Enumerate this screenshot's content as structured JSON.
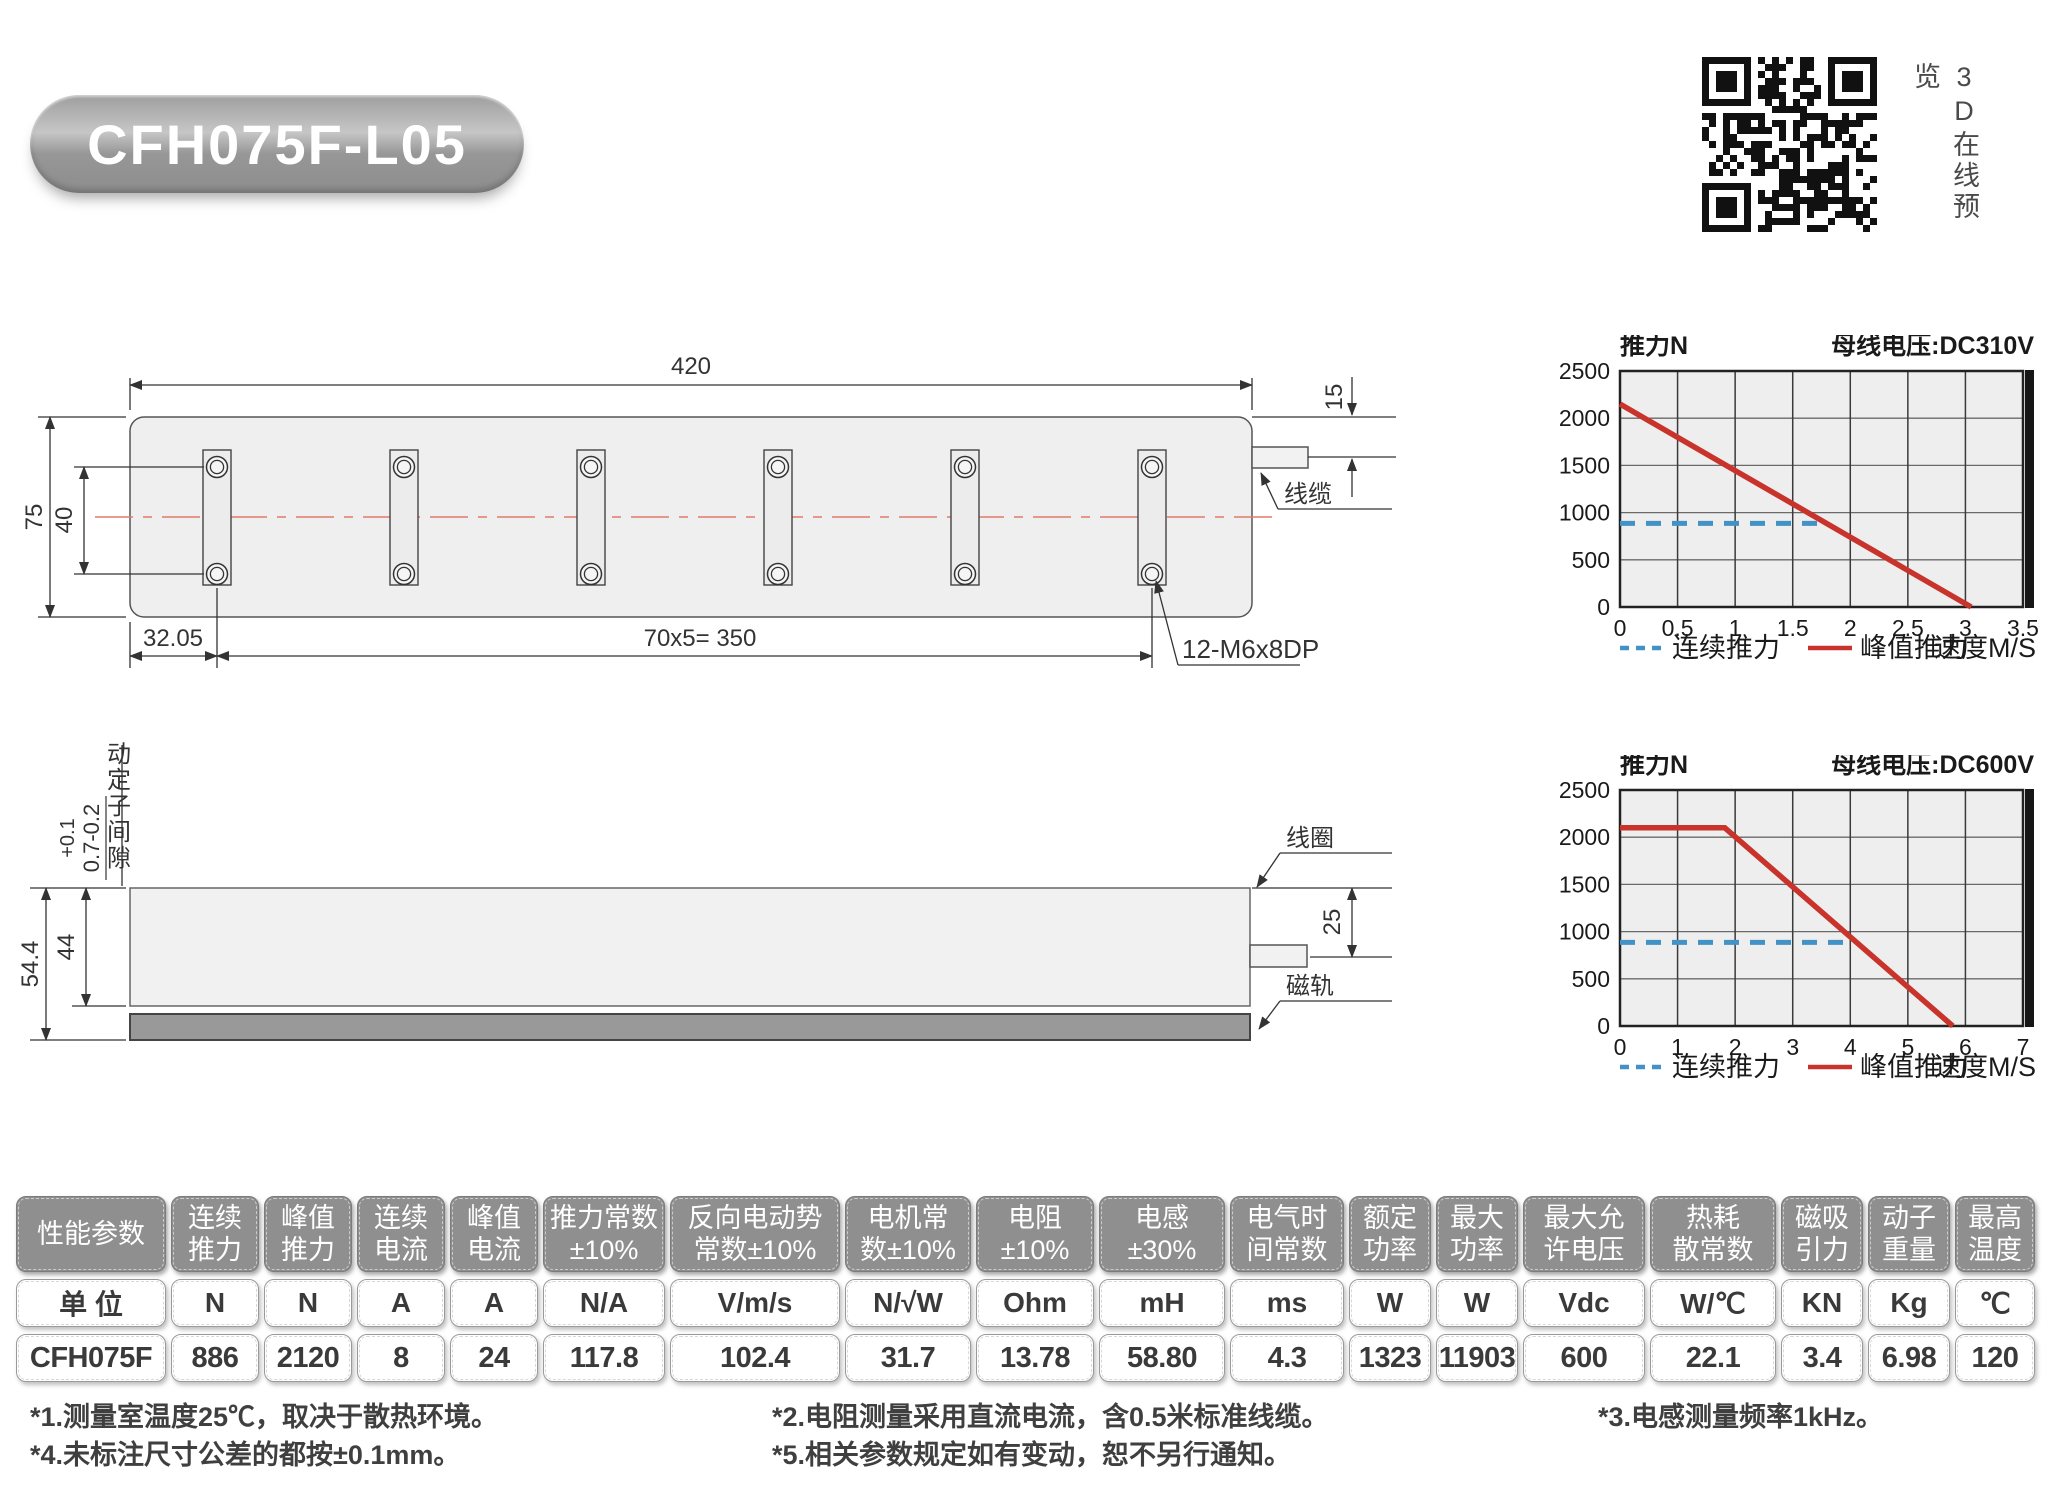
{
  "header": {
    "title": "CFH075F-L05",
    "qr_caption": "3D在线预览"
  },
  "drawing_top": {
    "dim_width": "420",
    "dim_height": "75",
    "dim_hole_pitch_vertical": "40",
    "dim_first_hole": "32.05",
    "dim_hole_pitch_horizontal": "70x5= 350",
    "dim_cable_offset": "15",
    "label_cable": "线缆",
    "label_thread": "12-M6x8DP"
  },
  "drawing_side": {
    "dim_total_height": "54.4",
    "dim_coil_height": "44",
    "tolerance_upper": "+0.1",
    "tolerance_value": "0.7-0.2",
    "label_gap": "动定子间隙",
    "label_coil": "线圈",
    "dim_cable_offset": "25",
    "label_magnet": "磁轨"
  },
  "chart_data": [
    {
      "type": "line",
      "ylabel": "推力N",
      "bus_label": "母线电压:DC310V",
      "xlabel": "速度M/S",
      "xlim": [
        0,
        3.5
      ],
      "ylim": [
        0,
        2500
      ],
      "x_ticks": [
        "0",
        "0.5",
        "1",
        "1.5",
        "2",
        "2.5",
        "3",
        "3.5"
      ],
      "y_ticks": [
        "0",
        "500",
        "1000",
        "1500",
        "2000",
        "2500"
      ],
      "grid": true,
      "legend_position": "bottom",
      "legend": [
        {
          "name": "连续推力",
          "style": "dashed",
          "color": "#4292c6"
        },
        {
          "name": "峰值推力",
          "style": "solid",
          "color": "#c8332b"
        }
      ],
      "series": [
        {
          "name": "峰值推力",
          "style": "solid",
          "color": "#c8332b",
          "points": [
            [
              0,
              2150
            ],
            [
              3.05,
              0
            ]
          ]
        },
        {
          "name": "连续推力",
          "style": "dashed",
          "color": "#4292c6",
          "points": [
            [
              0,
              886
            ],
            [
              1.75,
              886
            ]
          ]
        }
      ]
    },
    {
      "type": "line",
      "ylabel": "推力N",
      "bus_label": "母线电压:DC600V",
      "xlabel": "速度M/S",
      "xlim": [
        0,
        7
      ],
      "ylim": [
        0,
        2500
      ],
      "x_ticks": [
        "0",
        "1",
        "2",
        "3",
        "4",
        "5",
        "6",
        "7"
      ],
      "y_ticks": [
        "0",
        "500",
        "1000",
        "1500",
        "2000",
        "2500"
      ],
      "grid": true,
      "legend_position": "bottom",
      "legend": [
        {
          "name": "连续推力",
          "style": "dashed",
          "color": "#4292c6"
        },
        {
          "name": "峰值推力",
          "style": "solid",
          "color": "#c8332b"
        }
      ],
      "series": [
        {
          "name": "峰值推力",
          "style": "solid",
          "color": "#c8332b",
          "points": [
            [
              0,
              2100
            ],
            [
              1.82,
              2100
            ],
            [
              5.78,
              0
            ]
          ]
        },
        {
          "name": "连续推力",
          "style": "dashed",
          "color": "#4292c6",
          "points": [
            [
              0,
              886
            ],
            [
              4.02,
              886
            ]
          ]
        }
      ]
    }
  ],
  "table": {
    "columns": [
      {
        "header": "性能参数",
        "unit": "单 位",
        "value": "CFH075F"
      },
      {
        "header": "连续\n推力",
        "unit": "N",
        "value": "886"
      },
      {
        "header": "峰值\n推力",
        "unit": "N",
        "value": "2120"
      },
      {
        "header": "连续\n电流",
        "unit": "A",
        "value": "8"
      },
      {
        "header": "峰值\n电流",
        "unit": "A",
        "value": "24"
      },
      {
        "header": "推力常数\n±10%",
        "unit": "N/A",
        "value": "117.8"
      },
      {
        "header": "反向电动势\n常数±10%",
        "unit": "V/m/s",
        "value": "102.4"
      },
      {
        "header": "电机常\n数±10%",
        "unit": "N/√W",
        "value": "31.7"
      },
      {
        "header": "电阻\n±10%",
        "unit": "Ohm",
        "value": "13.78"
      },
      {
        "header": "电感\n±30%",
        "unit": "mH",
        "value": "58.80"
      },
      {
        "header": "电气时\n间常数",
        "unit": "ms",
        "value": "4.3"
      },
      {
        "header": "额定\n功率",
        "unit": "W",
        "value": "1323"
      },
      {
        "header": "最大\n功率",
        "unit": "W",
        "value": "11903"
      },
      {
        "header": "最大允\n许电压",
        "unit": "Vdc",
        "value": "600"
      },
      {
        "header": "热耗\n散常数",
        "unit": "W/℃",
        "value": "22.1"
      },
      {
        "header": "磁吸\n引力",
        "unit": "KN",
        "value": "3.4"
      },
      {
        "header": "动子\n重量",
        "unit": "Kg",
        "value": "6.98"
      },
      {
        "header": "最高\n温度",
        "unit": "℃",
        "value": "120"
      }
    ]
  },
  "footnotes": {
    "n1": "*1.测量室温度25℃，取决于散热环境。",
    "n2": "*2.电阻测量采用直流电流，含0.5米标准线缆。",
    "n3": "*3.电感测量频率1kHz。",
    "n4": "*4.未标注尺寸公差的都按±0.1mm。",
    "n5": "*5.相关参数规定如有变动，恕不另行通知。"
  }
}
